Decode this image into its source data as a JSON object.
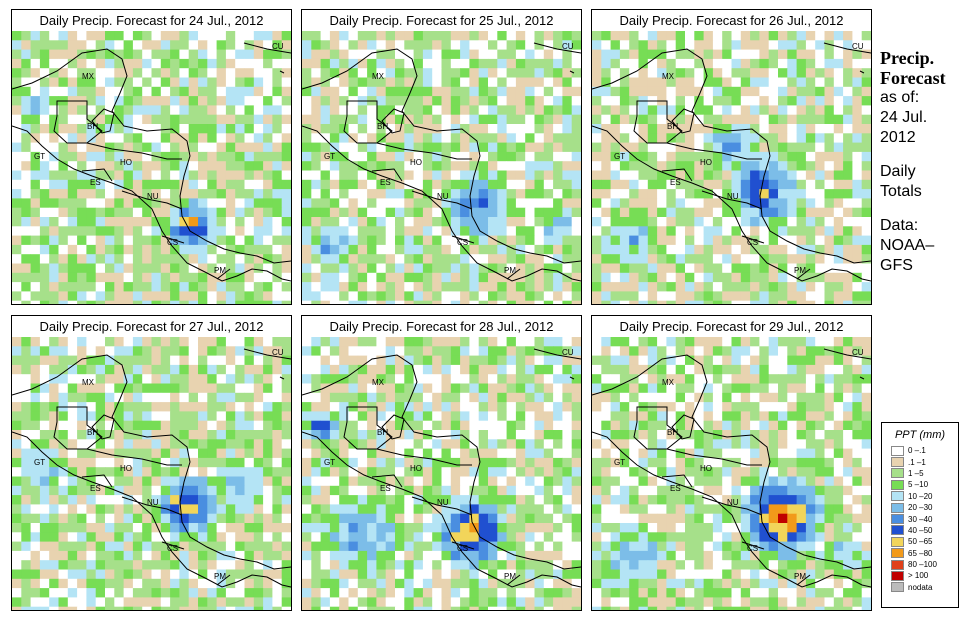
{
  "panels": [
    {
      "title": "Daily Precip. Forecast for  24 Jul., 2012"
    },
    {
      "title": "Daily Precip. Forecast for  25 Jul., 2012"
    },
    {
      "title": "Daily Precip. Forecast for  26 Jul., 2012"
    },
    {
      "title": "Daily Precip. Forecast for  27 Jul., 2012"
    },
    {
      "title": "Daily Precip. Forecast for  28 Jul., 2012"
    },
    {
      "title": "Daily Precip. Forecast for  29 Jul., 2012"
    }
  ],
  "map_labels": {
    "mx": "MX",
    "cu": "CU",
    "bh": "BH",
    "gt": "GT",
    "ho": "HO",
    "es": "ES",
    "nu": "NU",
    "cs": "CS",
    "pm": "PM"
  },
  "sidebar": {
    "title_line1": "Precip.",
    "title_line2": "Forecast",
    "asof_line1": "as of:",
    "asof_line2": "24 Jul.",
    "asof_line3": "2012",
    "totals_line1": "Daily",
    "totals_line2": "Totals",
    "data_line1": "Data:",
    "data_line2": "NOAA–",
    "data_line3": "GFS"
  },
  "legend": {
    "title": "PPT (mm)",
    "items": [
      {
        "label": "0 –.1",
        "color": "#ffffff"
      },
      {
        "label": ".1 –1",
        "color": "#e8d3b0"
      },
      {
        "label": "1 –5",
        "color": "#a6e08a"
      },
      {
        "label": "5 –10",
        "color": "#77dd55"
      },
      {
        "label": "10 –20",
        "color": "#b4e4f5"
      },
      {
        "label": "20 –30",
        "color": "#7cbde8"
      },
      {
        "label": "30 –40",
        "color": "#4a8ee0"
      },
      {
        "label": "40 –50",
        "color": "#2050d0"
      },
      {
        "label": "50 –65",
        "color": "#f2d55a"
      },
      {
        "label": "65 –80",
        "color": "#f29a1a"
      },
      {
        "label": "80 –100",
        "color": "#e0401a"
      },
      {
        "label": "> 100",
        "color": "#c00000"
      },
      {
        "label": "nodata",
        "color": "#bbbbbb"
      }
    ]
  }
}
